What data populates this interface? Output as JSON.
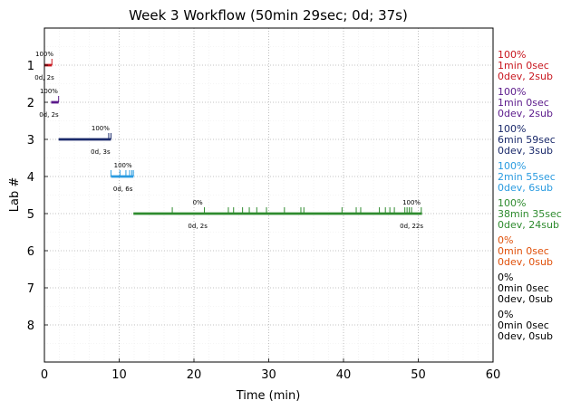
{
  "chart_data": {
    "type": "timeline",
    "title": "Week 3 Workflow (50min 29sec; 0d; 37s)",
    "xlabel": "Time (min)",
    "ylabel": "Lab #",
    "xlim": [
      0,
      60
    ],
    "ylim": [
      9,
      0
    ],
    "x_ticks": [
      "0",
      "10",
      "20",
      "30",
      "40",
      "50",
      "60"
    ],
    "y_ticks": [
      "1",
      "2",
      "3",
      "4",
      "5",
      "6",
      "7",
      "8"
    ],
    "grid": true,
    "labs": [
      {
        "lab": 1,
        "color": "#c8161e",
        "start": 0.0,
        "end": 1.0,
        "events": [
          1.0
        ],
        "top_labels": [
          {
            "text": "100%",
            "x": 0.0
          }
        ],
        "bottom_labels": [
          {
            "text": "0d, 2s",
            "x": 0.0
          }
        ],
        "side": [
          "100%",
          "1min 0sec",
          "0dev, 2sub"
        ]
      },
      {
        "lab": 2,
        "color": "#5b1a8b",
        "start": 0.9,
        "end": 1.9,
        "events": [
          1.9
        ],
        "top_labels": [
          {
            "text": "100%",
            "x": 0.6
          }
        ],
        "bottom_labels": [
          {
            "text": "0d, 2s",
            "x": 0.6
          }
        ],
        "side": [
          "100%",
          "1min 0sec",
          "0dev, 2sub"
        ]
      },
      {
        "lab": 3,
        "color": "#1b2a6b",
        "start": 1.9,
        "end": 8.9,
        "events": [
          8.6,
          8.9
        ],
        "top_labels": [
          {
            "text": "100%",
            "x": 7.5
          }
        ],
        "bottom_labels": [
          {
            "text": "0d, 3s",
            "x": 7.5
          }
        ],
        "side": [
          "100%",
          "6min 59sec",
          "0dev, 3sub"
        ]
      },
      {
        "lab": 4,
        "color": "#2a9be0",
        "start": 8.9,
        "end": 11.9,
        "events": [
          8.9,
          10.1,
          10.9,
          11.4,
          11.7,
          11.9
        ],
        "top_labels": [
          {
            "text": "100%",
            "x": 10.5
          }
        ],
        "bottom_labels": [
          {
            "text": "0d, 6s",
            "x": 10.5
          }
        ],
        "side": [
          "100%",
          "2min 55sec",
          "0dev, 6sub"
        ]
      },
      {
        "lab": 5,
        "color": "#2e8b2e",
        "start": 11.9,
        "end": 50.5,
        "events": [
          17.1,
          21.4,
          24.6,
          25.3,
          26.5,
          27.4,
          28.4,
          29.7,
          32.1,
          34.3,
          34.7,
          39.8,
          41.7,
          42.3,
          44.8,
          45.6,
          46.2,
          46.8,
          48.2,
          48.5,
          48.8,
          49.1,
          50.4
        ],
        "top_labels": [
          {
            "text": "0%",
            "x": 20.5
          },
          {
            "text": "100%",
            "x": 49.1
          }
        ],
        "bottom_labels": [
          {
            "text": "0d, 2s",
            "x": 20.5
          },
          {
            "text": "0d, 22s",
            "x": 49.1
          }
        ],
        "side": [
          "100%",
          "38min 35sec",
          "0dev, 24sub"
        ]
      },
      {
        "lab": 6,
        "color": "#e0500a",
        "side": [
          "0%",
          "0min 0sec",
          "0dev, 0sub"
        ]
      },
      {
        "lab": 7,
        "color": "#000000",
        "side": [
          "0%",
          "0min 0sec",
          "0dev, 0sub"
        ]
      },
      {
        "lab": 8,
        "color": "#000000",
        "side": [
          "0%",
          "0min 0sec",
          "0dev, 0sub"
        ]
      }
    ]
  }
}
